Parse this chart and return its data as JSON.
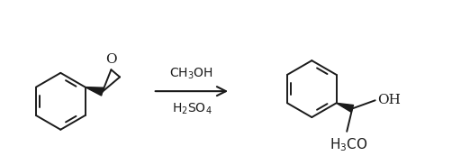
{
  "background_color": "#ffffff",
  "line_color": "#1a1a1a",
  "line_width": 1.4,
  "reagent_line1": "CH$_3$OH",
  "reagent_line2": "H$_2$SO$_4$",
  "arrow_label_fontsize": 10,
  "label_oh": "OH",
  "label_h3co": "H$_3$CO",
  "label_o": "O",
  "label_o_fontsize": 10,
  "lw_thin": 1.2
}
